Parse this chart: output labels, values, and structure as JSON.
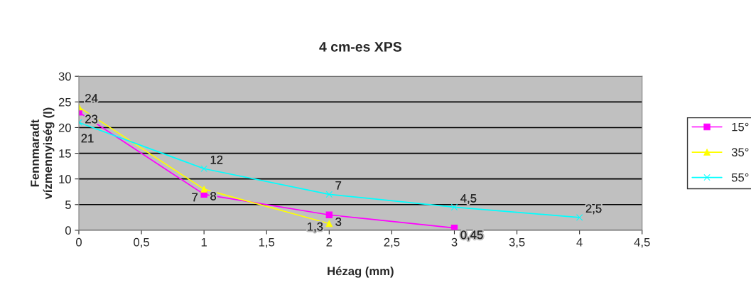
{
  "chart_data": {
    "type": "line",
    "title": "4 cm-es XPS",
    "xlabel": "Hézag (mm)",
    "ylabel": "Fennmaradt\nvízmennyiség (l)",
    "series": [
      {
        "name": "15°",
        "color": "#ff00ff",
        "marker": "square",
        "x": [
          0,
          1,
          2,
          3
        ],
        "values": [
          23,
          7,
          3,
          0.45
        ],
        "value_labels": [
          "23",
          "7",
          "3",
          "0,45"
        ]
      },
      {
        "name": "35°",
        "color": "#ffff00",
        "marker": "triangle",
        "x": [
          0,
          1,
          2
        ],
        "values": [
          24,
          8,
          1.3
        ],
        "value_labels": [
          "24",
          "8",
          "1,3"
        ]
      },
      {
        "name": "55°",
        "color": "#00ffff",
        "marker": "cross",
        "x": [
          0,
          1,
          2,
          3,
          4
        ],
        "values": [
          21,
          12,
          7,
          4.5,
          2.5
        ],
        "value_labels": [
          "21",
          "12",
          "7",
          "4,5",
          "2,5"
        ]
      }
    ],
    "xlim": [
      0,
      4.5
    ],
    "xticks": [
      0,
      {
        "value": 0.5,
        "label": "0,5"
      },
      1,
      {
        "value": 1.5,
        "label": "1,5"
      },
      2,
      {
        "value": 2.5,
        "label": "2,5"
      },
      3,
      {
        "value": 3.5,
        "label": "3,5"
      },
      4,
      {
        "value": 4.5,
        "label": "4,5"
      }
    ],
    "ylim": [
      0,
      30
    ],
    "yticks": [
      0,
      5,
      10,
      15,
      20,
      25,
      30
    ],
    "grid": "y",
    "legend": "right"
  }
}
